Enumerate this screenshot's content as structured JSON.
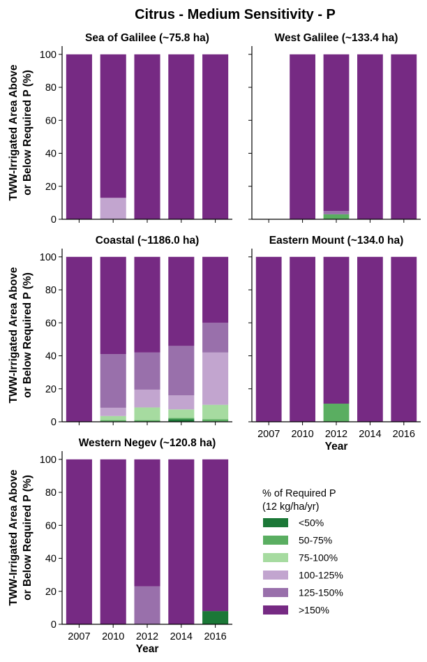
{
  "figure": {
    "title": "Citrus - Medium Sensitivity - P"
  },
  "legend": {
    "title_line1": "% of Required P",
    "title_line2": "(12 kg/ha/yr)",
    "placement": "bottom-right",
    "items": [
      {
        "label": "<50%",
        "color": "#1b7837"
      },
      {
        "label": "50-75%",
        "color": "#5aae61"
      },
      {
        "label": "75-100%",
        "color": "#a6dba0"
      },
      {
        "label": "100-125%",
        "color": "#c2a5cf"
      },
      {
        "label": "125-150%",
        "color": "#9970ab"
      },
      {
        "label": ">150%",
        "color": "#762a83"
      }
    ]
  },
  "chart_data": [
    {
      "type": "bar",
      "stacked": true,
      "title": "Sea of Galilee (~75.8 ha)",
      "ylabel_line1": "TWW-Irrigated Area Above",
      "ylabel_line2": "or Below Required P (%)",
      "xlabel": "",
      "categories": [
        "2007",
        "2010",
        "2012",
        "2014",
        "2016"
      ],
      "ylim": [
        0,
        105
      ],
      "yticks": [
        0,
        20,
        40,
        60,
        80,
        100
      ],
      "show_x_tick_labels": false,
      "series": [
        {
          "name": "<50%",
          "values": [
            0,
            0,
            0,
            0,
            0
          ]
        },
        {
          "name": "50-75%",
          "values": [
            0,
            0,
            0,
            0,
            0
          ]
        },
        {
          "name": "75-100%",
          "values": [
            0,
            0,
            0,
            0,
            0
          ]
        },
        {
          "name": "100-125%",
          "values": [
            0,
            13,
            0,
            0,
            0
          ]
        },
        {
          "name": "125-150%",
          "values": [
            0,
            0,
            0,
            0,
            0
          ]
        },
        {
          "name": ">150%",
          "values": [
            100,
            87,
            100,
            100,
            100
          ]
        }
      ]
    },
    {
      "type": "bar",
      "stacked": true,
      "title": "West Galilee (~133.4 ha)",
      "ylabel_line1": "",
      "ylabel_line2": "",
      "xlabel": "",
      "categories": [
        "2007",
        "2010",
        "2012",
        "2014",
        "2016"
      ],
      "ylim": [
        0,
        105
      ],
      "yticks": [
        0,
        20,
        40,
        60,
        80,
        100
      ],
      "show_x_tick_labels": false,
      "series": [
        {
          "name": "<50%",
          "values": [
            0,
            0,
            0,
            0,
            0
          ]
        },
        {
          "name": "50-75%",
          "values": [
            0,
            0,
            3,
            0,
            0
          ]
        },
        {
          "name": "75-100%",
          "values": [
            0,
            0,
            0,
            0,
            0
          ]
        },
        {
          "name": "100-125%",
          "values": [
            0,
            0,
            0,
            0,
            0
          ]
        },
        {
          "name": "125-150%",
          "values": [
            0,
            0,
            2,
            0,
            0
          ]
        },
        {
          "name": ">150%",
          "values": [
            0,
            100,
            95,
            100,
            100
          ]
        }
      ]
    },
    {
      "type": "bar",
      "stacked": true,
      "title": "Coastal (~1186.0 ha)",
      "ylabel_line1": "TWW-Irrigated Area Above",
      "ylabel_line2": "or Below Required P (%)",
      "xlabel": "",
      "categories": [
        "2007",
        "2010",
        "2012",
        "2014",
        "2016"
      ],
      "ylim": [
        0,
        105
      ],
      "yticks": [
        0,
        20,
        40,
        60,
        80,
        100
      ],
      "show_x_tick_labels": false,
      "series": [
        {
          "name": "<50%",
          "values": [
            0,
            0.3,
            0.2,
            1.5,
            0.3
          ]
        },
        {
          "name": "50-75%",
          "values": [
            0,
            0.7,
            0.8,
            0.8,
            1.2
          ]
        },
        {
          "name": "75-100%",
          "values": [
            0,
            2.5,
            7.7,
            5.2,
            8.8
          ]
        },
        {
          "name": "100-125%",
          "values": [
            0,
            5.0,
            10.8,
            8.5,
            31.7
          ]
        },
        {
          "name": "125-150%",
          "values": [
            0,
            32.5,
            22.5,
            30.0,
            18.0
          ]
        },
        {
          "name": ">150%",
          "values": [
            100,
            59.0,
            58.0,
            54.0,
            40.0
          ]
        }
      ]
    },
    {
      "type": "bar",
      "stacked": true,
      "title": "Eastern Mount (~134.0 ha)",
      "ylabel_line1": "",
      "ylabel_line2": "",
      "xlabel": "Year",
      "categories": [
        "2007",
        "2010",
        "2012",
        "2014",
        "2016"
      ],
      "ylim": [
        0,
        105
      ],
      "yticks": [
        0,
        20,
        40,
        60,
        80,
        100
      ],
      "show_x_tick_labels": true,
      "series": [
        {
          "name": "<50%",
          "values": [
            0,
            0,
            0,
            0,
            0
          ]
        },
        {
          "name": "50-75%",
          "values": [
            0,
            0,
            11,
            0,
            0
          ]
        },
        {
          "name": "75-100%",
          "values": [
            0,
            0,
            0,
            0,
            0
          ]
        },
        {
          "name": "100-125%",
          "values": [
            0,
            0,
            0,
            0,
            0
          ]
        },
        {
          "name": "125-150%",
          "values": [
            0,
            0,
            0,
            0,
            0
          ]
        },
        {
          "name": ">150%",
          "values": [
            100,
            100,
            89,
            100,
            100
          ]
        }
      ]
    },
    {
      "type": "bar",
      "stacked": true,
      "title": "Western Negev (~120.8 ha)",
      "ylabel_line1": "TWW-Irrigated Area Above",
      "ylabel_line2": "or Below Required P (%)",
      "xlabel": "Year",
      "categories": [
        "2007",
        "2010",
        "2012",
        "2014",
        "2016"
      ],
      "ylim": [
        0,
        105
      ],
      "yticks": [
        0,
        20,
        40,
        60,
        80,
        100
      ],
      "show_x_tick_labels": true,
      "series": [
        {
          "name": "<50%",
          "values": [
            0,
            0,
            0,
            0,
            8
          ]
        },
        {
          "name": "50-75%",
          "values": [
            0,
            0,
            0,
            0,
            0
          ]
        },
        {
          "name": "75-100%",
          "values": [
            0,
            0,
            0,
            0,
            0
          ]
        },
        {
          "name": "100-125%",
          "values": [
            0,
            0,
            0,
            0,
            0
          ]
        },
        {
          "name": "125-150%",
          "values": [
            0,
            0,
            23,
            0,
            0
          ]
        },
        {
          "name": ">150%",
          "values": [
            100,
            100,
            77,
            100,
            92
          ]
        }
      ]
    }
  ]
}
